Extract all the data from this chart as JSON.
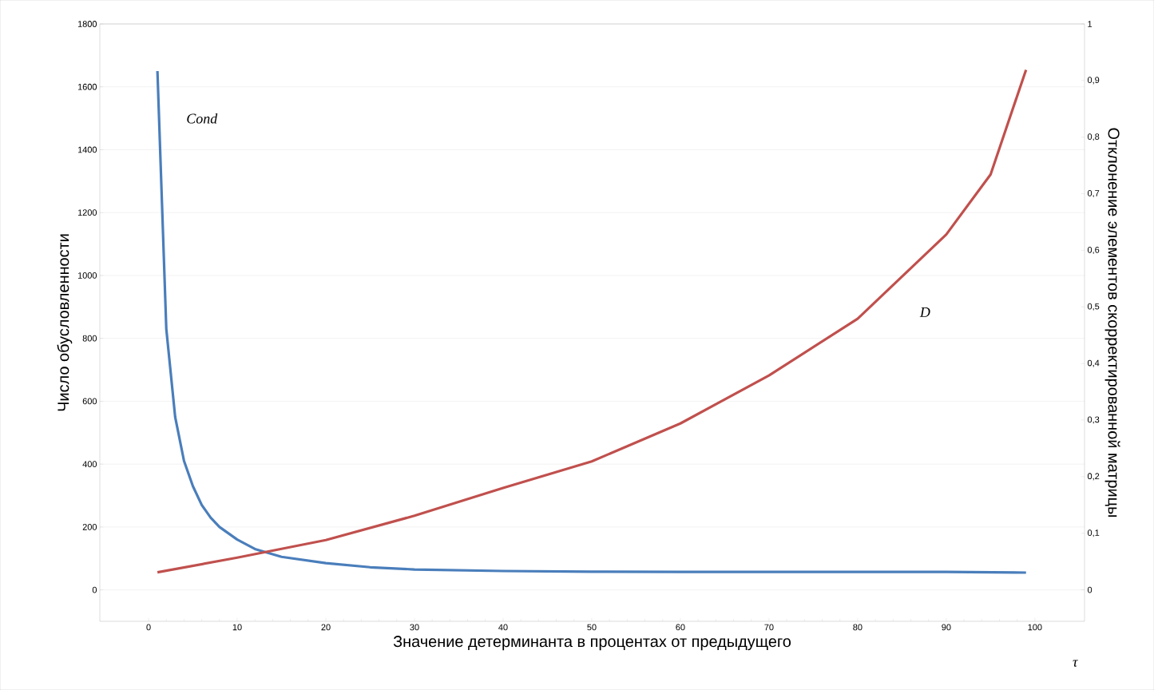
{
  "chart_data": {
    "type": "line",
    "xlabel": "Значение детерминанта в процентах от предыдущего",
    "ylabel": "Число обусловленности",
    "y2label": "Отклонение элементов скорректированной матрицы",
    "series": [
      {
        "color": "#4a7ebb",
        "x": [
          1,
          2,
          3,
          4,
          5,
          6,
          7,
          8,
          10,
          12,
          15,
          20,
          25,
          30,
          40,
          50,
          60,
          70,
          80,
          90,
          99
        ],
        "values": [
          1650,
          830,
          550,
          410,
          330,
          270,
          230,
          200,
          160,
          130,
          105,
          85,
          72,
          65,
          60,
          58,
          57,
          57,
          57,
          57,
          55
        ]
      },
      {
        "color": "#c0504d",
        "axis": "y2",
        "x": [
          1,
          10,
          20,
          30,
          40,
          50,
          60,
          70,
          80,
          90,
          95,
          99
        ],
        "values": [
          0.031,
          0.057,
          0.088,
          0.131,
          0.18,
          0.227,
          0.294,
          0.379,
          0.479,
          0.628,
          0.734,
          0.919
        ]
      }
    ],
    "annotations": [
      "Cond",
      "D",
      "τ"
    ],
    "xlim": [
      -5.5,
      105.6
    ],
    "ylim": [
      -100,
      1800
    ],
    "y2lim": [
      -0.0556,
      1
    ],
    "xticks": [
      0,
      10,
      20,
      30,
      40,
      50,
      60,
      70,
      80,
      90,
      100
    ],
    "yticks": [
      0,
      200,
      400,
      600,
      800,
      1000,
      1200,
      1400,
      1600,
      1800
    ],
    "y2ticks": [
      0,
      {
        "value": 0.1,
        "label": "0,1"
      },
      {
        "value": 0.2,
        "label": "0,2"
      },
      {
        "value": 0.3,
        "label": "0,3"
      },
      {
        "value": 0.4,
        "label": "0,4"
      },
      {
        "value": 0.5,
        "label": "0,5"
      },
      {
        "value": 0.6,
        "label": "0,6"
      },
      {
        "value": 0.7,
        "label": "0,7"
      },
      {
        "value": 0.8,
        "label": "0,8"
      },
      {
        "value": 0.9,
        "label": "0,9"
      },
      1
    ],
    "grid": "y"
  }
}
